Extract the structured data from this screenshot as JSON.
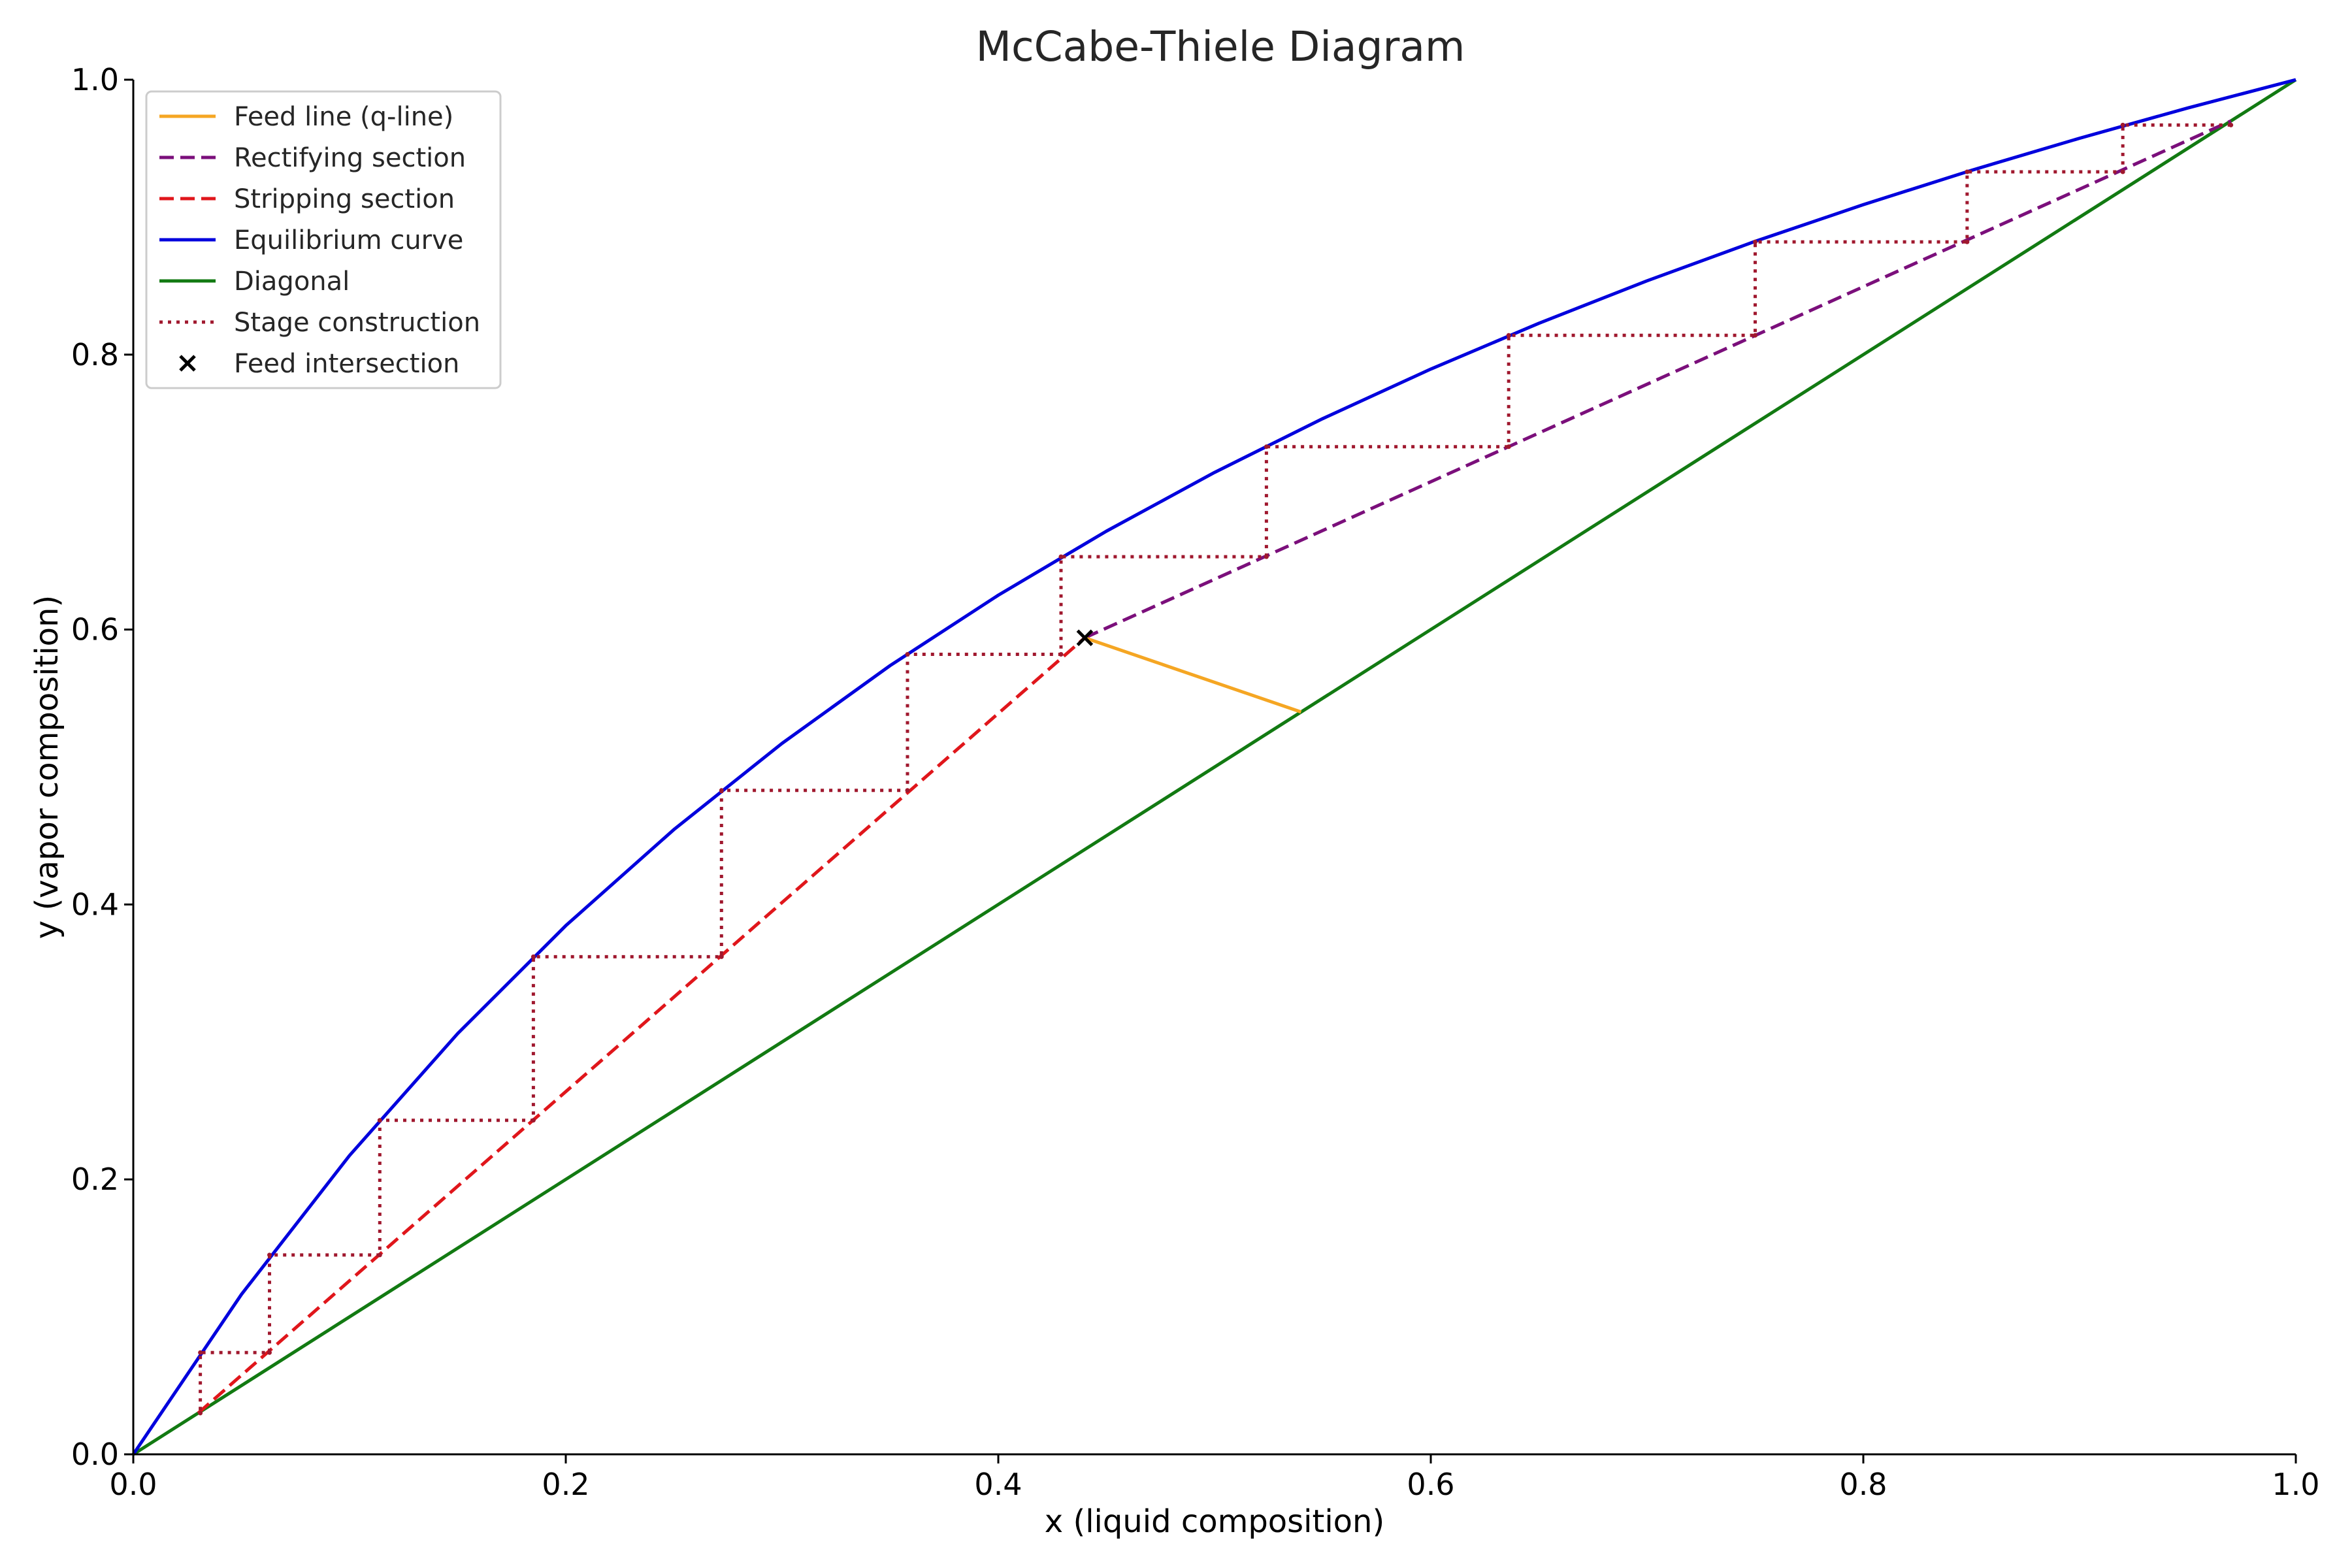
{
  "chart_data": {
    "type": "line",
    "title": "McCabe-Thiele Diagram",
    "xlabel": "x (liquid composition)",
    "ylabel": "y (vapor composition)",
    "xlim": [
      0,
      1
    ],
    "ylim": [
      0,
      1
    ],
    "xticks": [
      "0.0",
      "0.2",
      "0.4",
      "0.6",
      "0.8",
      "1.0"
    ],
    "yticks": [
      "0.0",
      "0.2",
      "0.4",
      "0.6",
      "0.8",
      "1.0"
    ],
    "grid": false,
    "legend_position": "top-left",
    "series": [
      {
        "name": "Feed line (q-line)",
        "color": "#f5a623",
        "style": "solid",
        "points": [
          [
            0.44,
            0.594
          ],
          [
            0.54,
            0.54
          ]
        ]
      },
      {
        "name": "Rectifying section",
        "color": "#7b0f7b",
        "style": "dashed",
        "points": [
          [
            0.44,
            0.594
          ],
          [
            0.97,
            0.97
          ]
        ]
      },
      {
        "name": "Stripping section",
        "color": "#e0161b",
        "style": "dashed",
        "points": [
          [
            0.03,
            0.03
          ],
          [
            0.44,
            0.594
          ]
        ]
      },
      {
        "name": "Equilibrium curve",
        "color": "#0000dd",
        "style": "solid",
        "relative_volatility": 2.5,
        "points": [
          [
            0,
            0
          ],
          [
            0.05,
            0.1163
          ],
          [
            0.1,
            0.2174
          ],
          [
            0.15,
            0.3061
          ],
          [
            0.2,
            0.3846
          ],
          [
            0.25,
            0.4545
          ],
          [
            0.3,
            0.5172
          ],
          [
            0.35,
            0.5738
          ],
          [
            0.4,
            0.625
          ],
          [
            0.45,
            0.6716
          ],
          [
            0.5,
            0.7143
          ],
          [
            0.55,
            0.7534
          ],
          [
            0.6,
            0.7895
          ],
          [
            0.65,
            0.8228
          ],
          [
            0.7,
            0.8537
          ],
          [
            0.75,
            0.8824
          ],
          [
            0.8,
            0.9091
          ],
          [
            0.85,
            0.9341
          ],
          [
            0.9,
            0.9574
          ],
          [
            0.95,
            0.9794
          ],
          [
            1,
            1
          ]
        ]
      },
      {
        "name": "Diagonal",
        "color": "#127a12",
        "style": "solid",
        "points": [
          [
            0,
            0
          ],
          [
            1,
            1
          ]
        ]
      },
      {
        "name": "Stage construction",
        "color": "#a0182e",
        "style": "dotted",
        "points": [
          [
            0.97,
            0.967
          ],
          [
            0.92,
            0.967
          ],
          [
            0.92,
            0.933
          ],
          [
            0.848,
            0.933
          ],
          [
            0.848,
            0.882
          ],
          [
            0.75,
            0.882
          ],
          [
            0.75,
            0.814
          ],
          [
            0.636,
            0.814
          ],
          [
            0.636,
            0.733
          ],
          [
            0.524,
            0.733
          ],
          [
            0.524,
            0.653
          ],
          [
            0.429,
            0.653
          ],
          [
            0.429,
            0.582
          ],
          [
            0.358,
            0.582
          ],
          [
            0.358,
            0.483
          ],
          [
            0.272,
            0.483
          ],
          [
            0.272,
            0.362
          ],
          [
            0.185,
            0.362
          ],
          [
            0.185,
            0.243
          ],
          [
            0.114,
            0.243
          ],
          [
            0.114,
            0.145
          ],
          [
            0.063,
            0.145
          ],
          [
            0.063,
            0.074
          ],
          [
            0.031,
            0.074
          ],
          [
            0.031,
            0.03
          ]
        ]
      }
    ],
    "markers": [
      {
        "name": "Feed intersection",
        "color": "#000000",
        "symbol": "x",
        "x": 0.44,
        "y": 0.594
      }
    ]
  }
}
